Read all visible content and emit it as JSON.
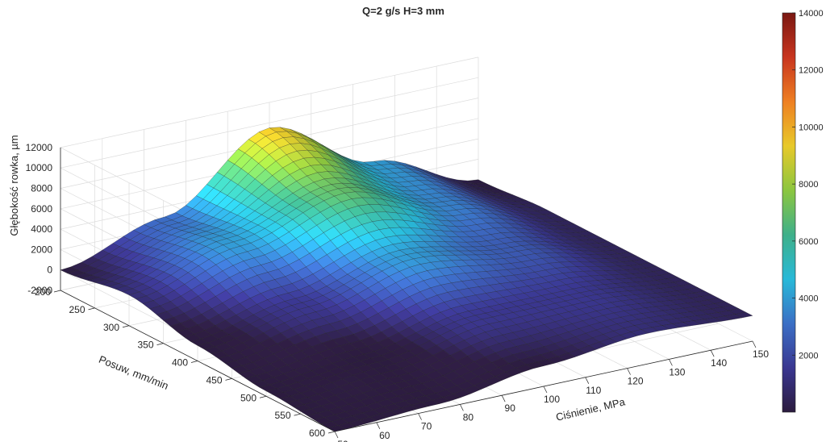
{
  "chart_data": {
    "type": "surface",
    "title": "Q=2 g/s H=3 mm",
    "xlabel": "Ciśnienie, MPa",
    "ylabel": "Posuw, mm/min",
    "zlabel": "Głębokość rowka, µm",
    "xlim": [
      50,
      150
    ],
    "ylim": [
      200,
      600
    ],
    "zlim": [
      -2000,
      12000
    ],
    "xticks": [
      "50",
      "60",
      "70",
      "80",
      "90",
      "100",
      "110",
      "120",
      "130",
      "140",
      "150"
    ],
    "yticks": [
      "200",
      "250",
      "300",
      "350",
      "400",
      "450",
      "500",
      "550",
      "600"
    ],
    "zticks": [
      "-2000",
      "0",
      "2000",
      "4000",
      "6000",
      "8000",
      "10000",
      "12000"
    ],
    "colorbar": {
      "limits": [
        0,
        14000
      ],
      "ticks": [
        "2000",
        "4000",
        "6000",
        "8000",
        "10000",
        "12000",
        "14000"
      ],
      "colormap": [
        "#2b1b3e",
        "#3a3791",
        "#3b6fc5",
        "#28b9d8",
        "#3fb08a",
        "#8cc63f",
        "#e8c92a",
        "#ee7f22",
        "#c8351f",
        "#7a1812"
      ]
    },
    "grid": true,
    "surface_samples": {
      "pressure_MPa": [
        50,
        75,
        100,
        125,
        150
      ],
      "feed_mm_min": [
        200,
        300,
        400,
        500,
        600
      ],
      "depth_um": [
        [
          0,
          3000,
          9500,
          4000,
          0
        ],
        [
          1000,
          4000,
          7000,
          3500,
          500
        ],
        [
          -500,
          1500,
          4000,
          2500,
          500
        ],
        [
          -1500,
          -500,
          1500,
          1500,
          500
        ],
        [
          -2000,
          -1500,
          0,
          1000,
          500
        ]
      ]
    }
  }
}
